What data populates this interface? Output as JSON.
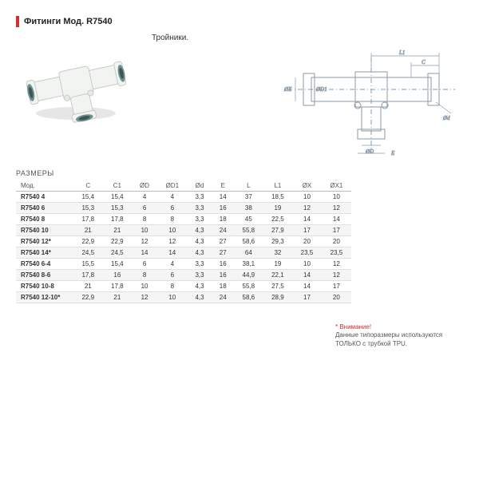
{
  "header": {
    "title": "Фитинги Мод. R7540"
  },
  "subtitle": "Тройники.",
  "section_label": "РАЗМЕРЫ",
  "table": {
    "columns": [
      "Мод.",
      "C",
      "C1",
      "ØD",
      "ØD1",
      "Ød",
      "E",
      "L",
      "L1",
      "ØX",
      "ØX1"
    ],
    "rows": [
      [
        "R7540 4",
        "15,4",
        "15,4",
        "4",
        "4",
        "3,3",
        "14",
        "37",
        "18,5",
        "10",
        "10"
      ],
      [
        "R7540 6",
        "15,3",
        "15,3",
        "6",
        "6",
        "3,3",
        "16",
        "38",
        "19",
        "12",
        "12"
      ],
      [
        "R7540 8",
        "17,8",
        "17,8",
        "8",
        "8",
        "3,3",
        "18",
        "45",
        "22,5",
        "14",
        "14"
      ],
      [
        "R7540 10",
        "21",
        "21",
        "10",
        "10",
        "4,3",
        "24",
        "55,8",
        "27,9",
        "17",
        "17"
      ],
      [
        "R7540 12*",
        "22,9",
        "22,9",
        "12",
        "12",
        "4,3",
        "27",
        "58,6",
        "29,3",
        "20",
        "20"
      ],
      [
        "R7540 14*",
        "24,5",
        "24,5",
        "14",
        "14",
        "4,3",
        "27",
        "64",
        "32",
        "23,5",
        "23,5"
      ],
      [
        "R7540 6-4",
        "15,5",
        "15,4",
        "6",
        "4",
        "3,3",
        "16",
        "38,1",
        "19",
        "10",
        "12"
      ],
      [
        "R7540 8-6",
        "17,8",
        "16",
        "8",
        "6",
        "3,3",
        "16",
        "44,9",
        "22,1",
        "14",
        "12"
      ],
      [
        "R7540 10-8",
        "21",
        "17,8",
        "10",
        "8",
        "4,3",
        "18",
        "55,8",
        "27,5",
        "14",
        "17"
      ],
      [
        "R7540 12-10*",
        "22,9",
        "21",
        "12",
        "10",
        "4,3",
        "24",
        "58,6",
        "28,9",
        "17",
        "20"
      ]
    ]
  },
  "note": {
    "warn": "* Внимание!",
    "text": "Данные типоразмеры используются ТОЛЬКО с трубкой TPU."
  },
  "diagram": {
    "labels": {
      "L1": "L1",
      "C": "C",
      "X": "ØX",
      "D1": "ØD1",
      "d": "Ød",
      "D": "ØD",
      "E": "E"
    },
    "stroke": "#8a9aa8",
    "thin": "#8a9aa8"
  },
  "photo": {
    "body": "#f2f4f1",
    "shadow": "#c8cac6",
    "ring": "#6b8f92",
    "hole": "#5a6b6d"
  }
}
